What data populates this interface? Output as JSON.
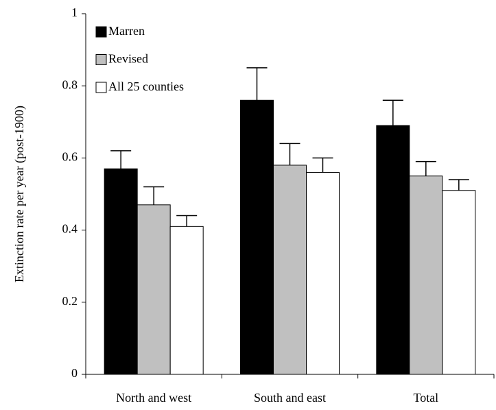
{
  "chart_data": {
    "type": "bar",
    "ylabel": "Extinction rate per year (post-1900)",
    "categories": [
      "North and west",
      "South and east",
      "Total"
    ],
    "series": [
      {
        "name": "Marren",
        "color": "#000000",
        "values": [
          0.57,
          0.76,
          0.69
        ],
        "errors": [
          0.05,
          0.09,
          0.07
        ]
      },
      {
        "name": "Revised",
        "color": "#c0c0c0",
        "values": [
          0.47,
          0.58,
          0.55
        ],
        "errors": [
          0.05,
          0.06,
          0.04
        ]
      },
      {
        "name": "All 25 counties",
        "color": "#ffffff",
        "values": [
          0.41,
          0.56,
          0.51
        ],
        "errors": [
          0.03,
          0.04,
          0.03
        ]
      }
    ],
    "ylim": [
      0,
      1
    ],
    "yticks": [
      0,
      0.2,
      0.4,
      0.6,
      0.8,
      1
    ],
    "grid": false,
    "legend": "top-left"
  }
}
